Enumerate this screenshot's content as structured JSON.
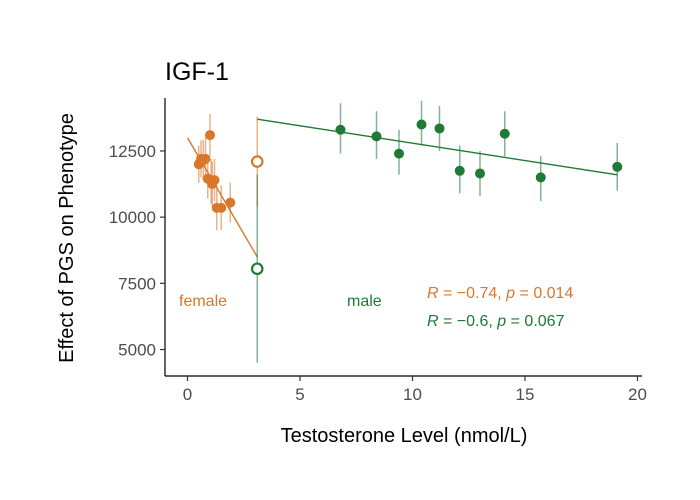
{
  "chart_data": {
    "type": "scatter",
    "title": "IGF-1",
    "xlabel": "Testosterone Level (nmol/L)",
    "ylabel": "Effect of PGS on Phenotype",
    "xlim": [
      -1,
      20.2
    ],
    "ylim": [
      4000,
      14500
    ],
    "x_ticks": [
      0,
      5,
      10,
      15,
      20
    ],
    "y_ticks": [
      5000,
      7500,
      10000,
      12500
    ],
    "grid": false,
    "series": [
      {
        "name": "female",
        "color": "#D9772B",
        "points": [
          {
            "x": 0.5,
            "y": 12000,
            "lo": 11300,
            "hi": 12700
          },
          {
            "x": 0.6,
            "y": 12200,
            "lo": 11500,
            "hi": 12900
          },
          {
            "x": 0.7,
            "y": 12150,
            "lo": 11400,
            "hi": 12900
          },
          {
            "x": 0.8,
            "y": 12200,
            "lo": 11400,
            "hi": 13000
          },
          {
            "x": 0.9,
            "y": 11450,
            "lo": 10700,
            "hi": 12200
          },
          {
            "x": 1.0,
            "y": 13100,
            "lo": 12300,
            "hi": 13900
          },
          {
            "x": 1.05,
            "y": 11400,
            "lo": 10500,
            "hi": 12200
          },
          {
            "x": 1.1,
            "y": 11250,
            "lo": 10400,
            "hi": 12100
          },
          {
            "x": 1.2,
            "y": 11400,
            "lo": 10600,
            "hi": 12200
          },
          {
            "x": 1.3,
            "y": 10350,
            "lo": 9500,
            "hi": 11200
          },
          {
            "x": 1.5,
            "y": 10350,
            "lo": 9500,
            "hi": 11200
          },
          {
            "x": 1.9,
            "y": 10550,
            "lo": 9800,
            "hi": 11300
          },
          {
            "x": 3.1,
            "y": 12100,
            "lo": 10400,
            "hi": 13800,
            "hollow": true
          }
        ],
        "fit": {
          "x": [
            0,
            3.1
          ],
          "y": [
            13000,
            8500
          ]
        },
        "label": "female",
        "stat": {
          "r": "−0.74",
          "p": "0.014"
        }
      },
      {
        "name": "male",
        "color": "#1E7A34",
        "points": [
          {
            "x": 3.1,
            "y": 8050,
            "lo": 4500,
            "hi": 11600,
            "hollow": true
          },
          {
            "x": 6.8,
            "y": 13300,
            "lo": 12400,
            "hi": 14300
          },
          {
            "x": 8.4,
            "y": 13050,
            "lo": 12200,
            "hi": 14000
          },
          {
            "x": 9.4,
            "y": 12400,
            "lo": 11600,
            "hi": 13300
          },
          {
            "x": 10.4,
            "y": 13500,
            "lo": 12700,
            "hi": 14400
          },
          {
            "x": 11.2,
            "y": 13350,
            "lo": 12500,
            "hi": 14200
          },
          {
            "x": 12.1,
            "y": 11750,
            "lo": 10900,
            "hi": 12700
          },
          {
            "x": 13.0,
            "y": 11650,
            "lo": 10800,
            "hi": 12500
          },
          {
            "x": 14.1,
            "y": 13150,
            "lo": 12300,
            "hi": 14000
          },
          {
            "x": 15.7,
            "y": 11500,
            "lo": 10600,
            "hi": 12300
          },
          {
            "x": 19.1,
            "y": 11900,
            "lo": 11000,
            "hi": 12800
          }
        ],
        "fit": {
          "x": [
            3.1,
            19.1
          ],
          "y": [
            13700,
            11600
          ]
        },
        "label": "male",
        "stat": {
          "r": "−0.6",
          "p": "0.067"
        }
      }
    ]
  }
}
